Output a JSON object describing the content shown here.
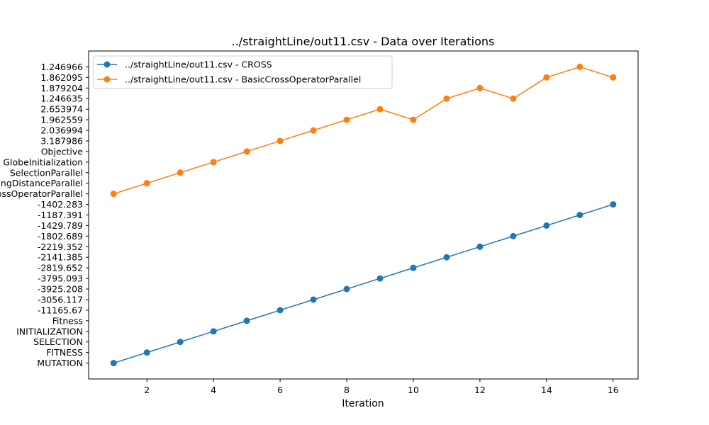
{
  "chart_data": {
    "type": "line",
    "title": "../straightLine/out11.csv - Data over Iterations",
    "xlabel": "Iteration",
    "ylabel": "",
    "x": [
      1,
      2,
      3,
      4,
      5,
      6,
      7,
      8,
      9,
      10,
      11,
      12,
      13,
      14,
      15,
      16
    ],
    "x_ticks": [
      2,
      4,
      6,
      8,
      10,
      12,
      14,
      16
    ],
    "xlim": [
      0.25,
      16.75
    ],
    "y_categories": [
      "MUTATION",
      "FITNESS",
      "SELECTION",
      "INITIALIZATION",
      "Fitness",
      "-11165.67",
      "-3056.117",
      "-3925.208",
      "-3795.093",
      "-2819.652",
      "-2141.385",
      "-2219.352",
      "-1802.689",
      "-1429.789",
      "-1187.391",
      "-1402.283",
      "BasicCrossOperatorParallel",
      "CrowdingDistanceParallel",
      "SelectionParallel",
      "GlobeInitialization",
      "Objective",
      "3.187986",
      "2.036994",
      "1.962559",
      "2.653974",
      "1.246635",
      "1.879204",
      "1.862095",
      "1.246966"
    ],
    "ylim": [
      -1.5,
      29.5
    ],
    "grid": false,
    "legend_position": "upper-left",
    "series": [
      {
        "name": "../straightLine/out11.csv - CROSS",
        "color": "#1f77b4",
        "values": [
          "MUTATION",
          "FITNESS",
          "SELECTION",
          "INITIALIZATION",
          "Fitness",
          "-11165.67",
          "-3056.117",
          "-3925.208",
          "-3795.093",
          "-2819.652",
          "-2141.385",
          "-2219.352",
          "-1802.689",
          "-1429.789",
          "-1187.391",
          "-1402.283"
        ]
      },
      {
        "name": "../straightLine/out11.csv - BasicCrossOperatorParallel",
        "color": "#ff7f0e",
        "values": [
          "BasicCrossOperatorParallel",
          "CrowdingDistanceParallel",
          "SelectionParallel",
          "GlobeInitialization",
          "Objective",
          "3.187986",
          "2.036994",
          "1.962559",
          "2.653974",
          "1.962559",
          "1.246635",
          "1.879204",
          "1.246635",
          "1.862095",
          "1.246966",
          "1.862095"
        ]
      }
    ]
  }
}
